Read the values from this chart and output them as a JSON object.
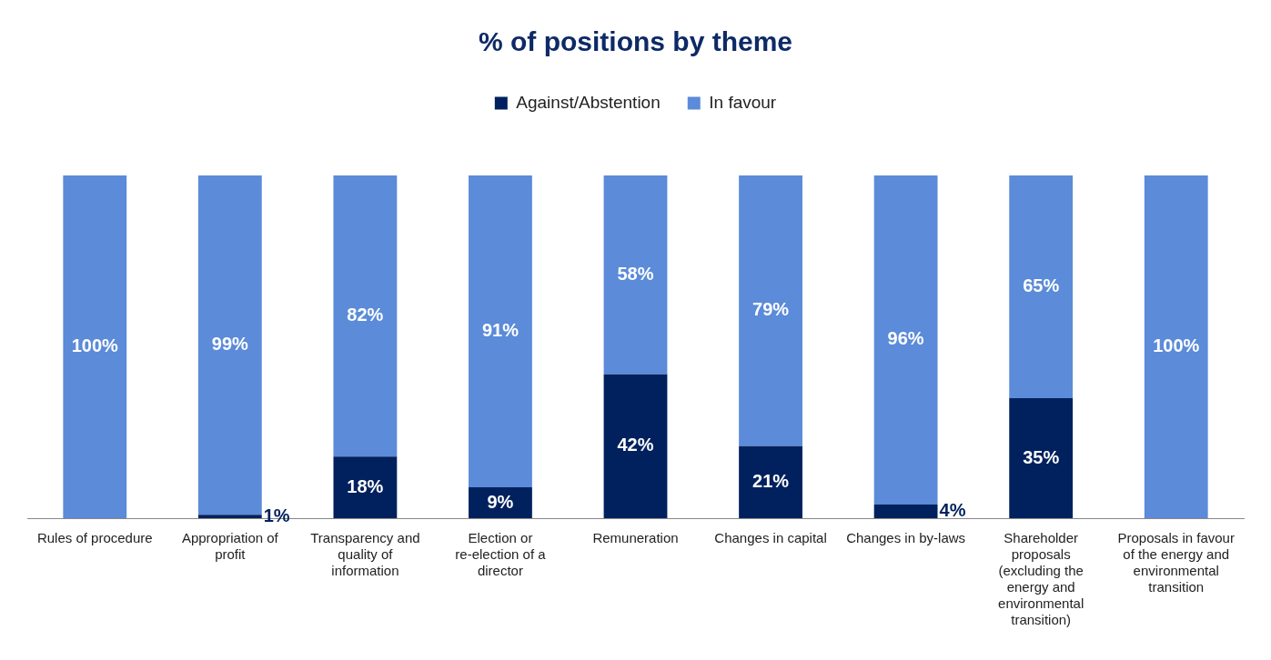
{
  "chart_data": {
    "type": "bar",
    "title": "% of positions by theme",
    "stacked": true,
    "legend": "top",
    "tick_labels": "x",
    "grid": false,
    "categories": [
      "Rules of procedure",
      "Appropriation of profit",
      "Transparency and quality of information",
      "Election or re-election of a director",
      "Remuneration",
      "Changes in capital",
      "Changes in by-laws",
      "Shareholder proposals (excluding the energy and environmental transition)",
      "Proposals in favour of the energy and environmental transition"
    ],
    "ylim": [
      0,
      100
    ],
    "series": [
      {
        "name": "Against/Abstention",
        "color": "#00215e",
        "values": [
          0,
          1,
          18,
          9,
          42,
          21,
          4,
          35,
          0
        ],
        "value_labels": [
          null,
          "1%",
          "18%",
          "9%",
          "42%",
          "21%",
          "4%",
          "35%",
          null
        ]
      },
      {
        "name": "In favour",
        "color": "#5b8bd9",
        "values": [
          100,
          99,
          82,
          91,
          58,
          79,
          96,
          65,
          100
        ],
        "value_labels": [
          "100%",
          "99%",
          "82%",
          "91%",
          "58%",
          "79%",
          "96%",
          "65%",
          "100%"
        ]
      }
    ]
  }
}
